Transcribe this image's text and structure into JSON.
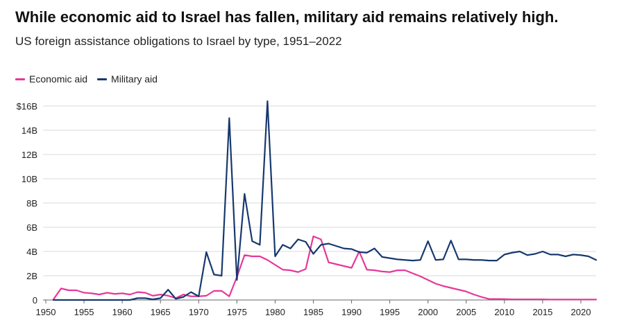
{
  "chart_data": {
    "type": "line",
    "title": "While economic aid to Israel has fallen, military aid remains relatively high.",
    "subtitle": "US foreign assistance obligations to Israel by type, 1951–2022",
    "xlabel": "",
    "ylabel": "",
    "xlim": [
      1950,
      2022
    ],
    "ylim": [
      0,
      16
    ],
    "grid": true,
    "legend_position": "top-left",
    "x_ticks": [
      {
        "value": 1950,
        "label": "1950"
      },
      {
        "value": 1955,
        "label": "1955"
      },
      {
        "value": 1960,
        "label": "1960"
      },
      {
        "value": 1965,
        "label": "1965"
      },
      {
        "value": 1970,
        "label": "1970"
      },
      {
        "value": 1975,
        "label": "1975"
      },
      {
        "value": 1980,
        "label": "1980"
      },
      {
        "value": 1985,
        "label": "1985"
      },
      {
        "value": 1990,
        "label": "1990"
      },
      {
        "value": 1995,
        "label": "1995"
      },
      {
        "value": 2000,
        "label": "2000"
      },
      {
        "value": 2005,
        "label": "2005"
      },
      {
        "value": 2010,
        "label": "2010"
      },
      {
        "value": 2015,
        "label": "2015"
      },
      {
        "value": 2020,
        "label": "2020"
      }
    ],
    "y_ticks": [
      {
        "value": 0,
        "label": "0"
      },
      {
        "value": 2,
        "label": "2B"
      },
      {
        "value": 4,
        "label": "4B"
      },
      {
        "value": 6,
        "label": "6B"
      },
      {
        "value": 8,
        "label": "8B"
      },
      {
        "value": 10,
        "label": "10B"
      },
      {
        "value": 12,
        "label": "12B"
      },
      {
        "value": 14,
        "label": "14B"
      },
      {
        "value": 16,
        "label": "$16B"
      }
    ],
    "x": [
      1951,
      1952,
      1953,
      1954,
      1955,
      1956,
      1957,
      1958,
      1959,
      1960,
      1961,
      1962,
      1963,
      1964,
      1965,
      1966,
      1967,
      1968,
      1969,
      1970,
      1971,
      1972,
      1973,
      1974,
      1975,
      1976,
      1977,
      1978,
      1979,
      1980,
      1981,
      1982,
      1983,
      1984,
      1985,
      1986,
      1987,
      1988,
      1989,
      1990,
      1991,
      1992,
      1993,
      1994,
      1995,
      1996,
      1997,
      1998,
      1999,
      2000,
      2001,
      2002,
      2003,
      2004,
      2005,
      2006,
      2007,
      2008,
      2009,
      2010,
      2011,
      2012,
      2013,
      2014,
      2015,
      2016,
      2017,
      2018,
      2019,
      2020,
      2021,
      2022
    ],
    "series": [
      {
        "name": "Economic aid",
        "color": "#e6379a",
        "values": [
          0.05,
          0.95,
          0.8,
          0.8,
          0.6,
          0.55,
          0.45,
          0.6,
          0.5,
          0.55,
          0.45,
          0.65,
          0.6,
          0.35,
          0.45,
          0.35,
          0.15,
          0.45,
          0.3,
          0.3,
          0.35,
          0.75,
          0.75,
          0.3,
          1.9,
          3.7,
          3.6,
          3.6,
          3.3,
          2.9,
          2.5,
          2.45,
          2.3,
          2.55,
          5.25,
          5.0,
          3.1,
          2.95,
          2.8,
          2.65,
          4.0,
          2.5,
          2.45,
          2.35,
          2.3,
          2.45,
          2.45,
          2.2,
          1.95,
          1.65,
          1.35,
          1.15,
          1.0,
          0.85,
          0.7,
          0.45,
          0.25,
          0.08,
          0.08,
          0.07,
          0.05,
          0.05,
          0.05,
          0.05,
          0.05,
          0.04,
          0.04,
          0.04,
          0.04,
          0.04,
          0.04,
          0.04
        ]
      },
      {
        "name": "Military aid",
        "color": "#17386e",
        "values": [
          0,
          0,
          0,
          0,
          0,
          0,
          0,
          0,
          0,
          0,
          0,
          0.15,
          0.15,
          0.05,
          0.15,
          0.85,
          0.1,
          0.25,
          0.65,
          0.3,
          3.95,
          2.1,
          2.0,
          15.0,
          1.65,
          8.75,
          4.85,
          4.55,
          16.4,
          3.6,
          4.55,
          4.25,
          5.0,
          4.8,
          3.8,
          4.55,
          4.65,
          4.45,
          4.25,
          4.2,
          3.95,
          3.9,
          4.25,
          3.55,
          3.45,
          3.35,
          3.3,
          3.25,
          3.3,
          4.85,
          3.3,
          3.35,
          4.9,
          3.35,
          3.35,
          3.3,
          3.3,
          3.25,
          3.25,
          3.75,
          3.9,
          4.0,
          3.7,
          3.8,
          4.0,
          3.75,
          3.75,
          3.6,
          3.75,
          3.7,
          3.6,
          3.3
        ]
      }
    ]
  }
}
